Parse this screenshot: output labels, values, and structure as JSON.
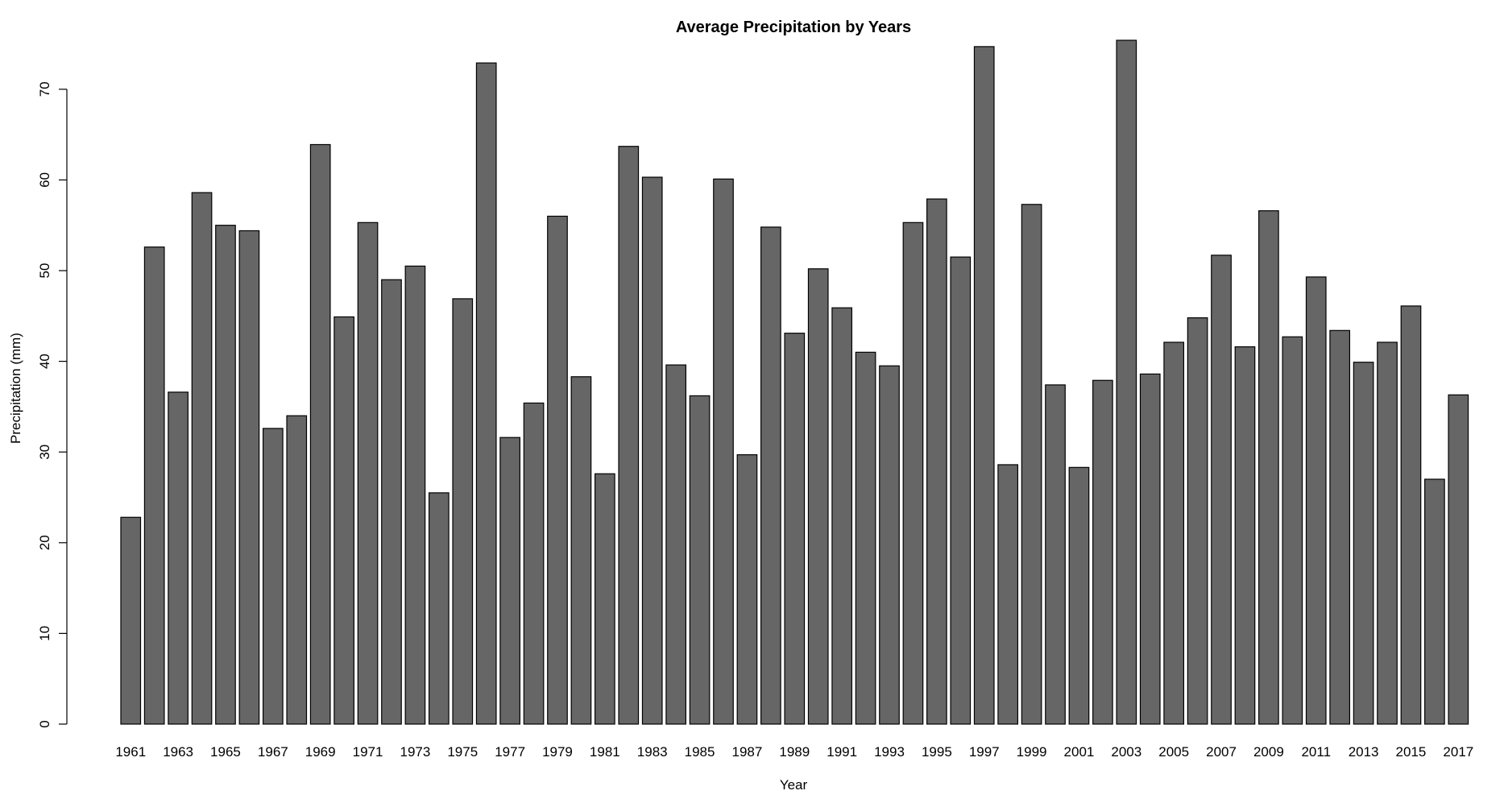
{
  "chart_data": {
    "type": "bar",
    "title": "Average Precipitation by Years",
    "xlabel": "Year",
    "ylabel": "Precipitation (mm)",
    "ylim": [
      0,
      75
    ],
    "yticks": [
      0,
      10,
      20,
      30,
      40,
      50,
      60,
      70
    ],
    "grid": false,
    "legend": "none",
    "bar_color": "#666666",
    "categories": [
      "1961",
      "1962",
      "1963",
      "1964",
      "1965",
      "1966",
      "1967",
      "1968",
      "1969",
      "1970",
      "1971",
      "1972",
      "1973",
      "1974",
      "1975",
      "1976",
      "1977",
      "1978",
      "1979",
      "1980",
      "1981",
      "1982",
      "1983",
      "1984",
      "1985",
      "1986",
      "1987",
      "1988",
      "1989",
      "1990",
      "1991",
      "1992",
      "1993",
      "1994",
      "1995",
      "1996",
      "1997",
      "1998",
      "1999",
      "2000",
      "2001",
      "2002",
      "2003",
      "2004",
      "2005",
      "2006",
      "2007",
      "2008",
      "2009",
      "2010",
      "2011",
      "2012",
      "2013",
      "2014",
      "2015",
      "2016",
      "2017"
    ],
    "x_tick_labels": [
      "1961",
      "",
      "1963",
      "",
      "1965",
      "",
      "1967",
      "",
      "1969",
      "",
      "1971",
      "",
      "1973",
      "",
      "1975",
      "",
      "1977",
      "",
      "1979",
      "",
      "1981",
      "",
      "1983",
      "",
      "1985",
      "",
      "1987",
      "",
      "1989",
      "",
      "1991",
      "",
      "1993",
      "",
      "1995",
      "",
      "1997",
      "",
      "1999",
      "",
      "2001",
      "",
      "2003",
      "",
      "2005",
      "",
      "2007",
      "",
      "2009",
      "",
      "2011",
      "",
      "2013",
      "",
      "2015",
      "",
      "2017"
    ],
    "values": [
      22.8,
      52.6,
      36.6,
      58.6,
      55.0,
      54.4,
      32.6,
      34.0,
      63.9,
      44.9,
      55.3,
      49.0,
      50.5,
      25.5,
      46.9,
      72.9,
      31.6,
      35.4,
      56.0,
      38.3,
      27.6,
      63.7,
      60.3,
      39.6,
      36.2,
      60.1,
      29.7,
      54.8,
      43.1,
      50.2,
      45.9,
      41.0,
      39.5,
      55.3,
      57.9,
      51.5,
      74.7,
      28.6,
      57.3,
      37.4,
      28.3,
      37.9,
      75.4,
      38.6,
      42.1,
      44.8,
      51.7,
      41.6,
      56.6,
      42.7,
      49.3,
      43.4,
      39.9,
      42.1,
      46.1,
      27.0,
      36.3
    ]
  }
}
